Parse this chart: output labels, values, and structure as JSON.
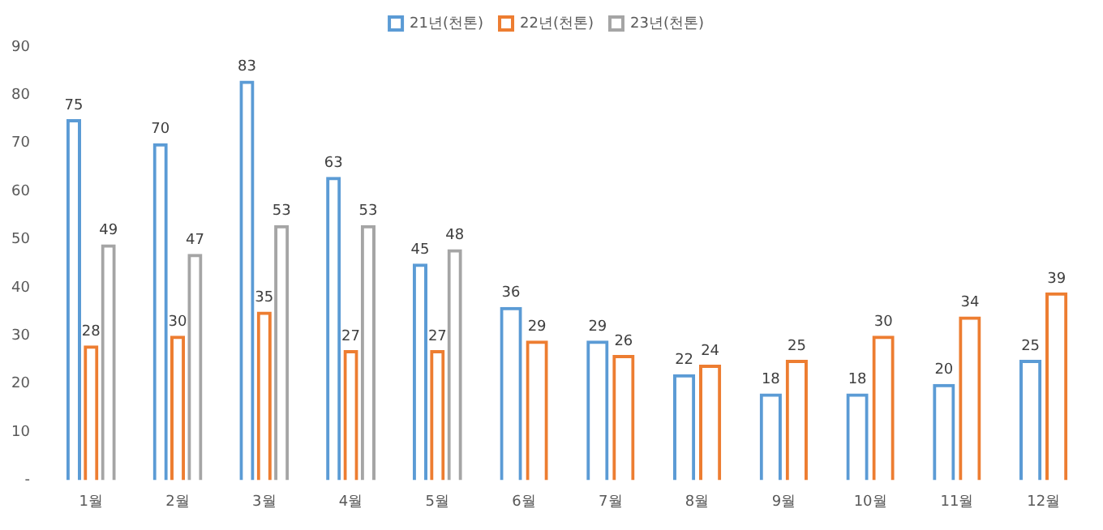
{
  "chart_data": {
    "type": "bar",
    "categories": [
      "1월",
      "2월",
      "3월",
      "4월",
      "5월",
      "6월",
      "7월",
      "8월",
      "9월",
      "10월",
      "11월",
      "12월"
    ],
    "series": [
      {
        "name": "21년(천톤)",
        "color": "#5b9bd5",
        "values": [
          75,
          70,
          83,
          63,
          45,
          36,
          29,
          22,
          18,
          18,
          20,
          25
        ]
      },
      {
        "name": "22년(천톤)",
        "color": "#ed7d31",
        "values": [
          28,
          30,
          35,
          27,
          27,
          29,
          26,
          24,
          25,
          30,
          34,
          39
        ]
      },
      {
        "name": "23년(천톤)",
        "color": "#a5a5a5",
        "values": [
          49,
          47,
          53,
          53,
          48,
          null,
          null,
          null,
          null,
          null,
          null,
          null
        ]
      }
    ],
    "ylim": [
      0,
      90
    ],
    "yticks": [
      {
        "value": 0,
        "label": "-"
      },
      10,
      20,
      30,
      40,
      50,
      60,
      70,
      80,
      90
    ],
    "grid": false,
    "legend": "top",
    "data_labels": true
  }
}
